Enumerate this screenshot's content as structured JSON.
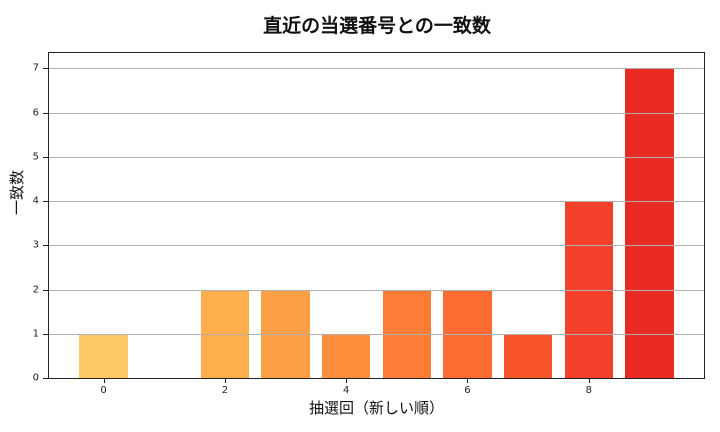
{
  "chart_data": {
    "type": "bar",
    "title": "直近の当選番号との一致数",
    "xlabel": "抽選回（新しい順）",
    "ylabel": "一致数",
    "categories": [
      0,
      1,
      2,
      3,
      4,
      5,
      6,
      7,
      8,
      9
    ],
    "values": [
      1,
      0,
      2,
      2,
      1,
      2,
      2,
      1,
      4,
      7
    ],
    "colors": [
      "#fdc967",
      "#fec466",
      "#feaf4b",
      "#fd9f45",
      "#fd8e3c",
      "#fc7d35",
      "#fc6b31",
      "#f9552b",
      "#f3402a",
      "#ea2b23"
    ],
    "xticks": [
      0,
      2,
      4,
      6,
      8
    ],
    "yticks": [
      0,
      1,
      2,
      3,
      4,
      5,
      6,
      7
    ],
    "xlim": [
      -0.9,
      9.9
    ],
    "ylim": [
      0,
      7.35
    ],
    "grid": "y",
    "legend": null
  }
}
